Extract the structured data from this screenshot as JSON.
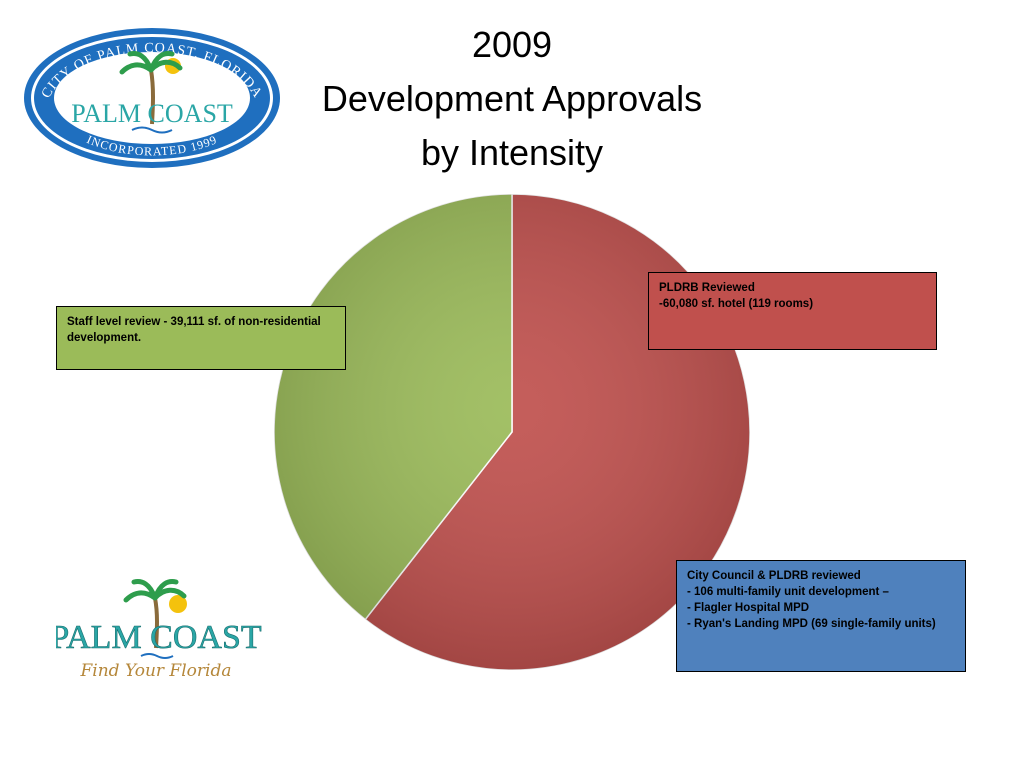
{
  "title": {
    "line1": "2009",
    "line2": "Development Approvals",
    "line3": "by Intensity"
  },
  "logos": {
    "seal_text_top": "CITY OF PALM COAST, FLORIDA",
    "seal_text_center": "PALM COAST",
    "seal_text_bottom": "INCORPORATED 1999",
    "brand_text": "PALM COAST",
    "brand_tagline": "Find Your Florida"
  },
  "callouts": {
    "staff": "Staff level review - 39,111 sf.  of non-residential development.",
    "pldrb": {
      "heading": "PLDRB Reviewed",
      "line": "-60,080 sf. hotel (119 rooms)"
    },
    "council": {
      "heading": "City Council & PLDRB reviewed",
      "items": [
        "-     106 multi-family unit development –",
        "-     Flagler Hospital MPD",
        "- Ryan's Landing MPD (69 single-family units)"
      ]
    }
  },
  "chart_data": {
    "type": "pie",
    "title": "2009 Development Approvals by Intensity",
    "slices": [
      {
        "label": "PLDRB Reviewed",
        "value": 60080,
        "color": "#c0504d"
      },
      {
        "label": "Staff level review",
        "value": 39111,
        "color": "#9bbb59"
      }
    ],
    "start_angle_deg": 0,
    "direction": "clockwise"
  },
  "colors": {
    "red_slice": "#c0504d",
    "green_slice": "#9bbb59",
    "blue_box": "#4f81bd"
  }
}
